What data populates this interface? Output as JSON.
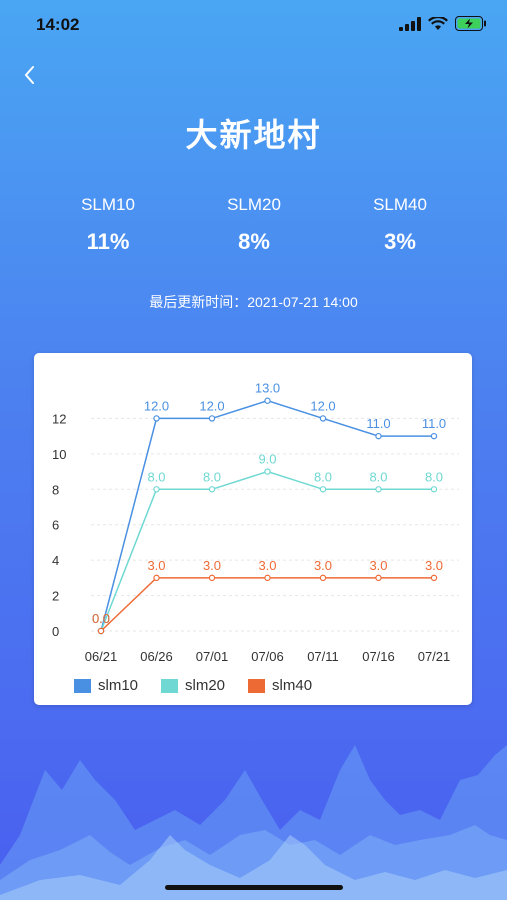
{
  "status_bar": {
    "time": "14:02"
  },
  "header": {
    "title": "大新地村"
  },
  "stats": [
    {
      "label": "SLM10",
      "value": "11%"
    },
    {
      "label": "SLM20",
      "value": "8%"
    },
    {
      "label": "SLM40",
      "value": "3%"
    }
  ],
  "update_text": "最后更新时间：2021-07-21 14:00",
  "colors": {
    "slm10": "#4a90e2",
    "slm20": "#6fd8d2",
    "slm40": "#ee6a35"
  },
  "chart_data": {
    "type": "line",
    "x": [
      "06/21",
      "06/26",
      "07/01",
      "07/06",
      "07/11",
      "07/16",
      "07/21"
    ],
    "yticks": [
      0,
      2,
      4,
      6,
      8,
      10,
      12
    ],
    "ylim": [
      0,
      14
    ],
    "grid": true,
    "legend_position": "bottom-left",
    "series": [
      {
        "name": "slm10",
        "color": "#4a90e2",
        "values": [
          0.0,
          12.0,
          12.0,
          13.0,
          12.0,
          11.0,
          11.0
        ]
      },
      {
        "name": "slm20",
        "color": "#6fd8d2",
        "values": [
          0.0,
          8.0,
          8.0,
          9.0,
          8.0,
          8.0,
          8.0
        ]
      },
      {
        "name": "slm40",
        "color": "#ee6a35",
        "values": [
          0.0,
          3.0,
          3.0,
          3.0,
          3.0,
          3.0,
          3.0
        ]
      }
    ]
  }
}
